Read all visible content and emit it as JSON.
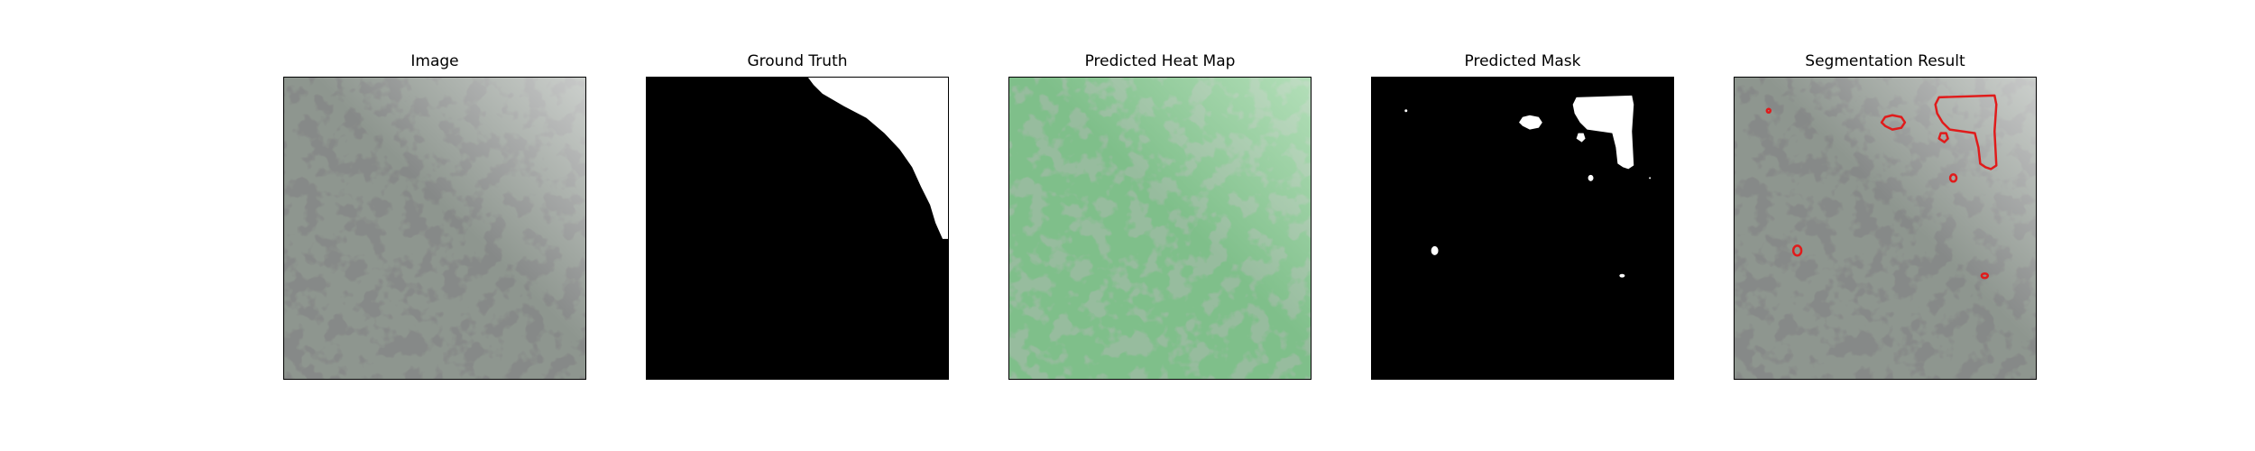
{
  "panels": [
    {
      "title": "Image"
    },
    {
      "title": "Ground Truth"
    },
    {
      "title": "Predicted Heat Map"
    },
    {
      "title": "Predicted Mask"
    },
    {
      "title": "Segmentation Result"
    }
  ],
  "colors": {
    "texture_base": "#8e968f",
    "texture_spot": "#3a3c3b",
    "heatmap_base": "#7fbf8a",
    "heatmap_spot": "#4e7f57",
    "mask_foreground": "#ffffff",
    "mask_background": "#000000",
    "contour": "#e01b1b"
  }
}
